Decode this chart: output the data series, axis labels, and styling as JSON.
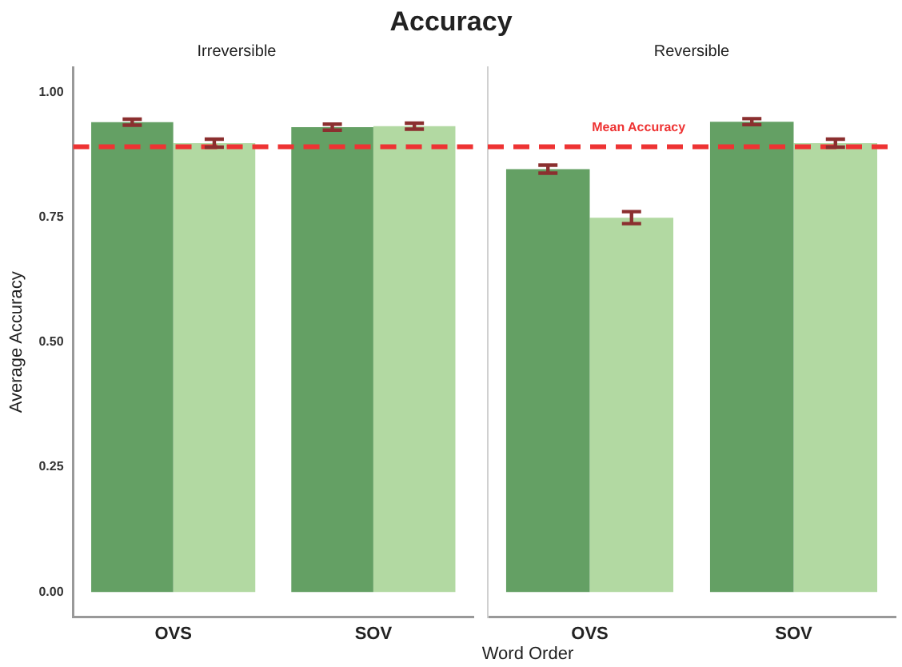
{
  "chart_data": [
    {
      "type": "bar",
      "title": "Accuracy",
      "subtitle": "Irreversible",
      "xlabel": "Word Order",
      "ylabel": "Average Accuracy",
      "categories": [
        "OVS",
        "SOV"
      ],
      "series": [
        {
          "color": "#64a064",
          "values": [
            0.94,
            0.93
          ],
          "errors": [
            0.006,
            0.006
          ]
        },
        {
          "color": "#b2d9a2",
          "values": [
            0.898,
            0.932
          ],
          "errors": [
            0.008,
            0.006
          ]
        }
      ],
      "ylim": [
        -0.05,
        1.05
      ],
      "yticks": [
        {
          "value": 0,
          "label": "0.00"
        },
        {
          "value": 0.25,
          "label": "0.25"
        },
        {
          "value": 0.5,
          "label": "0.50"
        },
        {
          "value": 0.75,
          "label": "0.75"
        },
        {
          "value": 1,
          "label": "1.00"
        }
      ],
      "ref_lines": [
        {
          "axis": "y",
          "value": 0.891,
          "color": "#ee3333",
          "line_style": "dashed"
        }
      ],
      "grid": false,
      "legend": false
    },
    {
      "type": "bar",
      "subtitle": "Reversible",
      "categories": [
        "OVS",
        "SOV"
      ],
      "series": [
        {
          "color": "#64a064",
          "values": [
            0.846,
            0.941
          ],
          "errors": [
            0.008,
            0.006
          ]
        },
        {
          "color": "#b2d9a2",
          "values": [
            0.749,
            0.898
          ],
          "errors": [
            0.012,
            0.008
          ]
        }
      ],
      "ylim": [
        -0.05,
        1.05
      ],
      "ref_lines": [
        {
          "axis": "y",
          "value": 0.891,
          "label": "Mean Accuracy",
          "color": "#ee3333",
          "line_style": "dashed"
        }
      ],
      "grid": false,
      "legend": false,
      "tick_labels": "x"
    }
  ]
}
